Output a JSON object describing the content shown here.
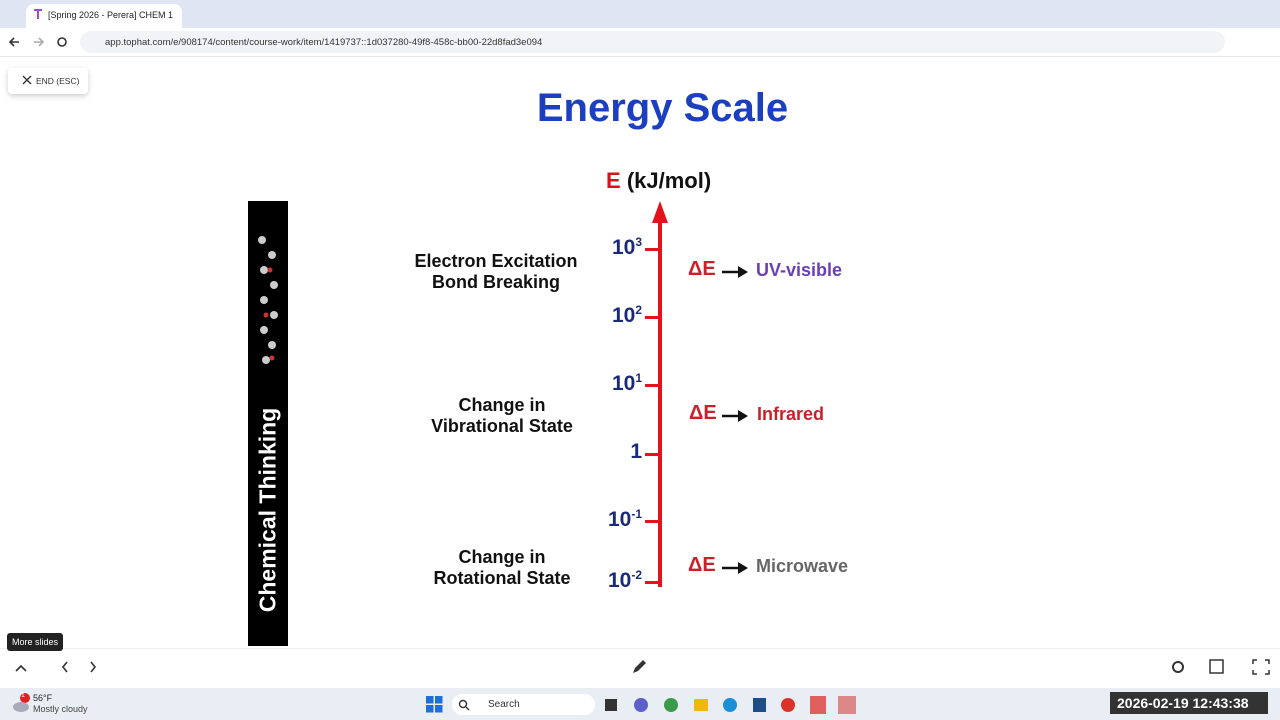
{
  "browser": {
    "tab_title": "[Spring 2026 - Perera] CHEM 1",
    "url": "app.tophat.com/e/908174/content/course-work/item/1419737::1d037280-49f8-458c-bb00-22d8fad3e094"
  },
  "toolbar": {
    "end_button": "END (ESC)",
    "more_slides": "More slides"
  },
  "slide": {
    "title": "Energy Scale",
    "axis_symbol": "E",
    "axis_unit": "(kJ/mol)",
    "banner": "Chemical Thinking",
    "ticks": [
      {
        "base": "10",
        "exp": "3"
      },
      {
        "base": "10",
        "exp": "2"
      },
      {
        "base": "10",
        "exp": "1"
      },
      {
        "base": "1",
        "exp": null
      },
      {
        "base": "10",
        "exp": "-1"
      },
      {
        "base": "10",
        "exp": "-2"
      }
    ],
    "regions": [
      {
        "lines": [
          "Electron Excitation",
          "Bond Breaking"
        ],
        "delta": "ΔE",
        "radiation": "UV-visible"
      },
      {
        "lines": [
          "Change in",
          "Vibrational State"
        ],
        "delta": "ΔE",
        "radiation": "Infrared"
      },
      {
        "lines": [
          "Change in",
          "Rotational State"
        ],
        "delta": "ΔE",
        "radiation": "Microwave"
      }
    ]
  },
  "taskbar": {
    "weather_temp": "56°F",
    "weather_desc": "Mostly cloudy",
    "weather_badge": "1",
    "search": "Search",
    "clock": "2026-02-19 12:43:38"
  }
}
